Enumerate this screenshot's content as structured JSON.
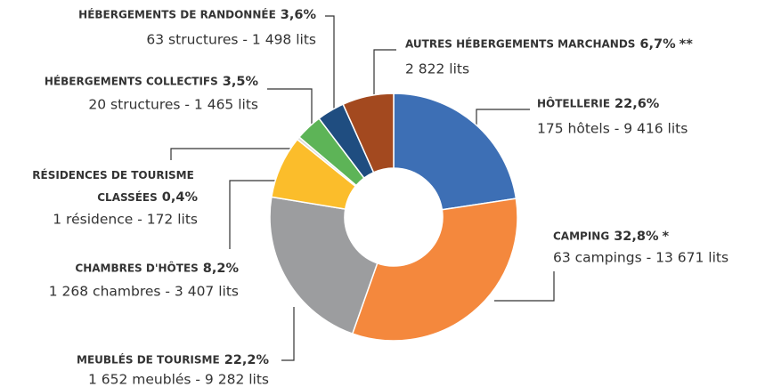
{
  "chart_data": {
    "type": "pie",
    "categories": [
      "HÔTELLERIE",
      "CAMPING",
      "MEUBLÉS DE TOURISME",
      "CHAMBRES D'HÔTES",
      "RÉSIDENCES DE TOURISME CLASSÉES",
      "HÉBERGEMENTS COLLECTIFS",
      "HÉBERGEMENTS DE RANDONNÉE",
      "AUTRES HÉBERGEMENTS MARCHANDS"
    ],
    "values": [
      22.6,
      32.8,
      22.2,
      8.2,
      0.4,
      3.5,
      3.6,
      6.7
    ],
    "value_labels": [
      "22,6%",
      "32,8%",
      "22,2%",
      "8,2%",
      "0,4%",
      "3,5%",
      "3,6%",
      "6,7%"
    ],
    "notes": [
      null,
      "*",
      null,
      null,
      null,
      null,
      null,
      "**"
    ],
    "details": [
      "175 hôtels  - 9 416 lits",
      "63 campings - 13 671 lits",
      "1 652 meublés - 9 282 lits",
      "1 268 chambres - 3 407 lits",
      "1 résidence - 172 lits",
      "20 structures - 1 465 lits",
      "63 structures - 1 498 lits",
      "2 822 lits"
    ],
    "colors": [
      "#3d6fb5",
      "#f4883d",
      "#9c9d9f",
      "#fbbd2b",
      "#dcdcdc",
      "#5db457",
      "#1f4d80",
      "#a3491f"
    ]
  }
}
